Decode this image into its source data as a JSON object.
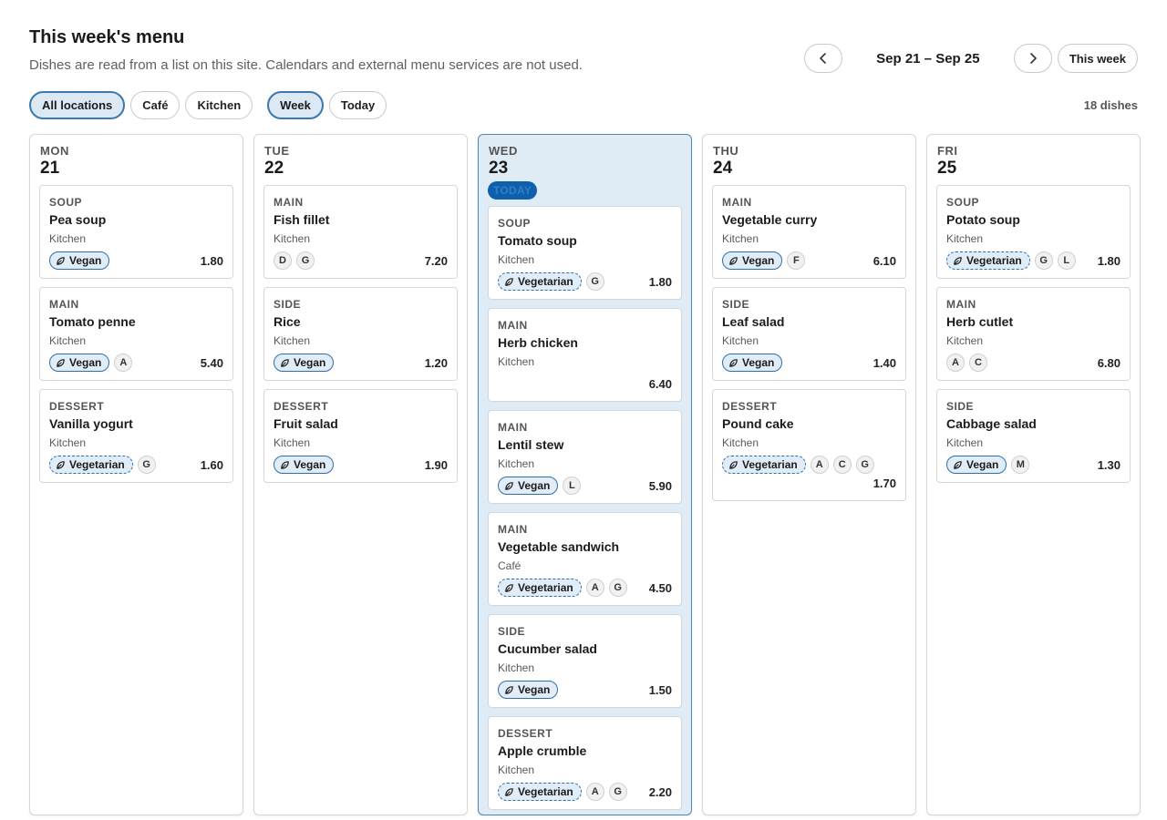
{
  "header": {
    "title": "This week's menu",
    "subtitle": "Dishes are read from a list on this site. Calendars and external menu services are not used."
  },
  "nav": {
    "range": "Sep 21 – Sep 25",
    "this_week": "This week",
    "prev_icon": "chevron-left-icon",
    "next_icon": "chevron-right-icon"
  },
  "filters": {
    "locations": [
      {
        "label": "All locations",
        "active": true
      },
      {
        "label": "Café",
        "active": false
      },
      {
        "label": "Kitchen",
        "active": false
      }
    ],
    "views": [
      {
        "label": "Week",
        "active": true
      },
      {
        "label": "Today",
        "active": false
      }
    ]
  },
  "dish_count": "18 dishes",
  "colors": {
    "accent": "#0f5fad",
    "today_bg": "#dfebf5",
    "tag_bg": "#e0ecf7"
  },
  "days": [
    {
      "name": "MON",
      "num": "21",
      "today": false,
      "dishes": [
        {
          "course": "SOUP",
          "name": "Pea soup",
          "location": "Kitchen",
          "tag": "Vegan",
          "allergens": [],
          "price": "1.80"
        },
        {
          "course": "MAIN",
          "name": "Tomato penne",
          "location": "Kitchen",
          "tag": "Vegan",
          "allergens": [
            "A"
          ],
          "price": "5.40"
        },
        {
          "course": "DESSERT",
          "name": "Vanilla yogurt",
          "location": "Kitchen",
          "tag": "Vegetarian",
          "allergens": [
            "G"
          ],
          "price": "1.60"
        }
      ]
    },
    {
      "name": "TUE",
      "num": "22",
      "today": false,
      "dishes": [
        {
          "course": "MAIN",
          "name": "Fish fillet",
          "location": "Kitchen",
          "tag": "",
          "allergens": [
            "D",
            "G"
          ],
          "price": "7.20"
        },
        {
          "course": "SIDE",
          "name": "Rice",
          "location": "Kitchen",
          "tag": "Vegan",
          "allergens": [],
          "price": "1.20"
        },
        {
          "course": "DESSERT",
          "name": "Fruit salad",
          "location": "Kitchen",
          "tag": "Vegan",
          "allergens": [],
          "price": "1.90"
        }
      ]
    },
    {
      "name": "WED",
      "num": "23",
      "today": true,
      "today_label": "TODAY",
      "dishes": [
        {
          "course": "SOUP",
          "name": "Tomato soup",
          "location": "Kitchen",
          "tag": "Vegetarian",
          "allergens": [
            "G"
          ],
          "price": "1.80"
        },
        {
          "course": "MAIN",
          "name": "Herb chicken",
          "location": "Kitchen",
          "tag": "",
          "allergens": [],
          "price": "6.40"
        },
        {
          "course": "MAIN",
          "name": "Lentil stew",
          "location": "Kitchen",
          "tag": "Vegan",
          "allergens": [
            "L"
          ],
          "price": "5.90"
        },
        {
          "course": "MAIN",
          "name": "Vegetable sandwich",
          "location": "Café",
          "tag": "Vegetarian",
          "allergens": [
            "A",
            "G"
          ],
          "price": "4.50"
        },
        {
          "course": "SIDE",
          "name": "Cucumber salad",
          "location": "Kitchen",
          "tag": "Vegan",
          "allergens": [],
          "price": "1.50"
        },
        {
          "course": "DESSERT",
          "name": "Apple crumble",
          "location": "Kitchen",
          "tag": "Vegetarian",
          "allergens": [
            "A",
            "G"
          ],
          "price": "2.20"
        }
      ]
    },
    {
      "name": "THU",
      "num": "24",
      "today": false,
      "dishes": [
        {
          "course": "MAIN",
          "name": "Vegetable curry",
          "location": "Kitchen",
          "tag": "Vegan",
          "allergens": [
            "F"
          ],
          "price": "6.10"
        },
        {
          "course": "SIDE",
          "name": "Leaf salad",
          "location": "Kitchen",
          "tag": "Vegan",
          "allergens": [],
          "price": "1.40"
        },
        {
          "course": "DESSERT",
          "name": "Pound cake",
          "location": "Kitchen",
          "tag": "Vegetarian",
          "allergens": [
            "A",
            "C",
            "G"
          ],
          "price": "1.70",
          "wrap_price": true
        }
      ]
    },
    {
      "name": "FRI",
      "num": "25",
      "today": false,
      "dishes": [
        {
          "course": "SOUP",
          "name": "Potato soup",
          "location": "Kitchen",
          "tag": "Vegetarian",
          "allergens": [
            "G",
            "L"
          ],
          "price": "1.80"
        },
        {
          "course": "MAIN",
          "name": "Herb cutlet",
          "location": "Kitchen",
          "tag": "",
          "allergens": [
            "A",
            "C"
          ],
          "price": "6.80"
        },
        {
          "course": "SIDE",
          "name": "Cabbage salad",
          "location": "Kitchen",
          "tag": "Vegan",
          "allergens": [
            "M"
          ],
          "price": "1.30"
        }
      ]
    }
  ]
}
